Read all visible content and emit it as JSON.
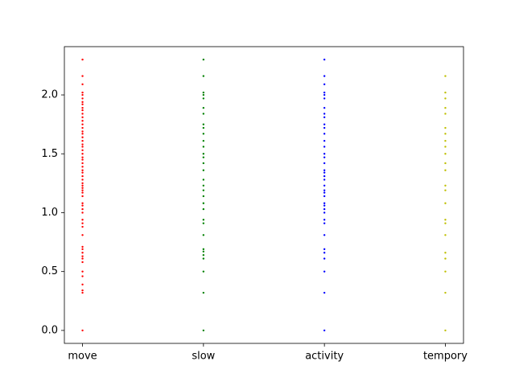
{
  "chart_data": {
    "type": "scatter",
    "title": "",
    "xlabel": "",
    "ylabel": "",
    "categories": [
      "move",
      "slow",
      "activity",
      "tempory"
    ],
    "ylim": [
      -0.11,
      2.41
    ],
    "yticks": [
      0.0,
      0.5,
      1.0,
      1.5,
      2.0
    ],
    "ytick_labels": [
      "0.0",
      "0.5",
      "1.0",
      "1.5",
      "2.0"
    ],
    "grid": false,
    "legend": "none",
    "series": [
      {
        "category": "move",
        "color": "#ff0000",
        "values": [
          0.0,
          0.32,
          0.34,
          0.39,
          0.46,
          0.5,
          0.58,
          0.61,
          0.63,
          0.66,
          0.69,
          0.71,
          0.81,
          0.88,
          0.91,
          0.94,
          1.0,
          1.03,
          1.06,
          1.08,
          1.14,
          1.17,
          1.19,
          1.21,
          1.23,
          1.25,
          1.28,
          1.31,
          1.34,
          1.36,
          1.39,
          1.42,
          1.45,
          1.47,
          1.5,
          1.53,
          1.56,
          1.58,
          1.61,
          1.64,
          1.67,
          1.69,
          1.72,
          1.75,
          1.78,
          1.81,
          1.84,
          1.87,
          1.89,
          1.92,
          1.94,
          1.97,
          2.0,
          2.02,
          2.09,
          2.16,
          2.3
        ]
      },
      {
        "category": "slow",
        "color": "#008000",
        "values": [
          0.0,
          0.32,
          0.5,
          0.61,
          0.64,
          0.67,
          0.69,
          0.81,
          0.91,
          0.94,
          1.03,
          1.08,
          1.14,
          1.19,
          1.23,
          1.28,
          1.36,
          1.42,
          1.47,
          1.5,
          1.56,
          1.61,
          1.67,
          1.72,
          1.75,
          1.84,
          1.89,
          1.97,
          2.0,
          2.02,
          2.16,
          2.3
        ]
      },
      {
        "category": "activity",
        "color": "#0000ff",
        "values": [
          0.0,
          0.32,
          0.5,
          0.61,
          0.66,
          0.69,
          0.81,
          0.91,
          0.94,
          1.0,
          1.03,
          1.06,
          1.08,
          1.14,
          1.17,
          1.19,
          1.23,
          1.28,
          1.31,
          1.34,
          1.36,
          1.42,
          1.47,
          1.5,
          1.56,
          1.61,
          1.67,
          1.72,
          1.75,
          1.81,
          1.84,
          1.89,
          1.97,
          2.0,
          2.02,
          2.09,
          2.16,
          2.3
        ]
      },
      {
        "category": "tempory",
        "color": "#bfbf00",
        "values": [
          0.0,
          0.32,
          0.5,
          0.61,
          0.66,
          0.81,
          0.91,
          0.94,
          1.08,
          1.19,
          1.23,
          1.36,
          1.42,
          1.5,
          1.56,
          1.61,
          1.67,
          1.72,
          1.84,
          1.89,
          1.97,
          2.02,
          2.16
        ]
      }
    ]
  }
}
